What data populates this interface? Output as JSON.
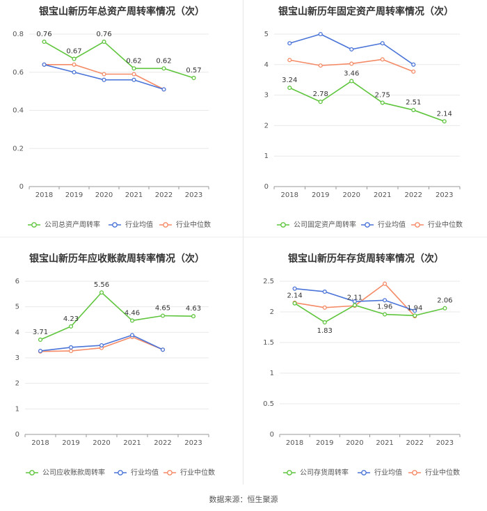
{
  "source_text": "数据来源：恒生聚源",
  "chart_data": [
    {
      "type": "line",
      "title": "银宝山新历年总资产周转率情况（次）",
      "categories": [
        "2018",
        "2019",
        "2020",
        "2021",
        "2022",
        "2023"
      ],
      "ylim": [
        0,
        0.8
      ],
      "yticks": [
        0,
        0.2,
        0.4,
        0.6,
        0.8
      ],
      "ytick_labels": [
        "0",
        "0.2",
        "0.4",
        "0.6",
        "0.8"
      ],
      "xlabel": "",
      "ylabel": "",
      "grid": true,
      "legend": "bottom",
      "series": [
        {
          "name": "公司总资产周转率",
          "color": "#5ec53c",
          "values": [
            0.76,
            0.67,
            0.76,
            0.62,
            0.62,
            0.57
          ],
          "labels": [
            "0.76",
            "0.67",
            "0.76",
            "0.62",
            "0.62",
            "0.57"
          ]
        },
        {
          "name": "行业均值",
          "color": "#4a74d8",
          "values": [
            0.64,
            0.6,
            0.56,
            0.56,
            0.51,
            null
          ],
          "labels": []
        },
        {
          "name": "行业中位数",
          "color": "#f58a66",
          "values": [
            0.64,
            0.64,
            0.59,
            0.59,
            0.51,
            null
          ],
          "labels": []
        }
      ]
    },
    {
      "type": "line",
      "title": "银宝山新历年固定资产周转率情况（次）",
      "categories": [
        "2018",
        "2019",
        "2020",
        "2021",
        "2022",
        "2023"
      ],
      "ylim": [
        0,
        5
      ],
      "yticks": [
        0,
        1,
        2,
        3,
        4,
        5
      ],
      "ytick_labels": [
        "0",
        "1",
        "2",
        "3",
        "4",
        "5"
      ],
      "xlabel": "",
      "ylabel": "",
      "grid": true,
      "legend": "bottom",
      "series": [
        {
          "name": "公司固定资产周转率",
          "color": "#5ec53c",
          "values": [
            3.24,
            2.78,
            3.46,
            2.75,
            2.51,
            2.14
          ],
          "labels": [
            "3.24",
            "2.78",
            "3.46",
            "2.75",
            "2.51",
            "2.14"
          ]
        },
        {
          "name": "行业均值",
          "color": "#4a74d8",
          "values": [
            4.7,
            5.0,
            4.5,
            4.7,
            4.0,
            null
          ],
          "labels": []
        },
        {
          "name": "行业中位数",
          "color": "#f58a66",
          "values": [
            4.15,
            3.97,
            4.03,
            4.17,
            3.77,
            null
          ],
          "labels": []
        }
      ]
    },
    {
      "type": "line",
      "title": "银宝山新历年应收账款周转率情况（次）",
      "categories": [
        "2018",
        "2019",
        "2020",
        "2021",
        "2022",
        "2023"
      ],
      "ylim": [
        0,
        6
      ],
      "yticks": [
        0,
        1,
        2,
        3,
        4,
        5,
        6
      ],
      "ytick_labels": [
        "0",
        "1",
        "2",
        "3",
        "4",
        "5",
        "6"
      ],
      "xlabel": "",
      "ylabel": "",
      "grid": true,
      "legend": "bottom",
      "series": [
        {
          "name": "公司应收账款周转率",
          "color": "#5ec53c",
          "values": [
            3.71,
            4.23,
            5.56,
            4.46,
            4.65,
            4.63
          ],
          "labels": [
            "3.71",
            "4.23",
            "5.56",
            "4.46",
            "4.65",
            "4.63"
          ]
        },
        {
          "name": "行业均值",
          "color": "#4a74d8",
          "values": [
            3.27,
            3.41,
            3.49,
            3.89,
            3.32,
            null
          ],
          "labels": []
        },
        {
          "name": "行业中位数",
          "color": "#f58a66",
          "values": [
            3.25,
            3.27,
            3.39,
            3.82,
            3.32,
            null
          ],
          "labels": []
        }
      ]
    },
    {
      "type": "line",
      "title": "银宝山新历年存货周转率情况（次）",
      "categories": [
        "2018",
        "2019",
        "2020",
        "2021",
        "2022",
        "2023"
      ],
      "ylim": [
        0,
        2.5
      ],
      "yticks": [
        0,
        0.5,
        1,
        1.5,
        2,
        2.5
      ],
      "ytick_labels": [
        "0",
        "0.5",
        "1",
        "1.5",
        "2",
        "2.5"
      ],
      "xlabel": "",
      "ylabel": "",
      "grid": true,
      "legend": "bottom",
      "series": [
        {
          "name": "公司存货周转率",
          "color": "#5ec53c",
          "values": [
            2.14,
            1.83,
            2.11,
            1.96,
            1.94,
            2.06
          ],
          "labels": [
            "2.14",
            "1.83",
            "2.11",
            "1.96",
            "1.94",
            "2.06"
          ]
        },
        {
          "name": "行业均值",
          "color": "#4a74d8",
          "values": [
            2.38,
            2.33,
            2.17,
            2.19,
            2.02,
            null
          ],
          "labels": []
        },
        {
          "name": "行业中位数",
          "color": "#f58a66",
          "values": [
            2.15,
            2.07,
            2.1,
            2.46,
            1.93,
            null
          ],
          "labels": []
        }
      ]
    }
  ]
}
